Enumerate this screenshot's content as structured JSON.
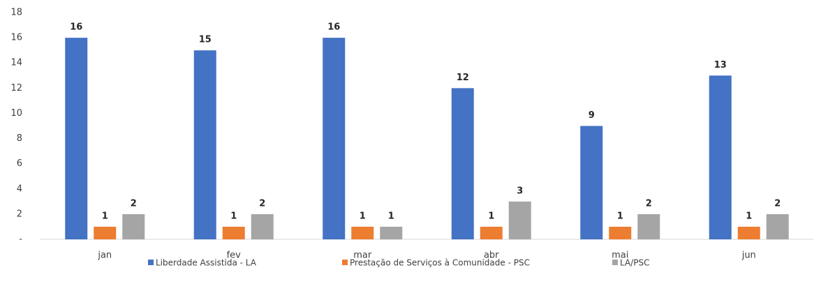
{
  "chart_data": {
    "type": "bar",
    "categories": [
      "jan",
      "fev",
      "mar",
      "abr",
      "mai",
      "jun"
    ],
    "series": [
      {
        "name": "Liberdade Assistida - LA",
        "color": "#4472c4",
        "values": [
          16,
          15,
          16,
          12,
          9,
          13
        ]
      },
      {
        "name": "Prestação de Serviços à Comunidade - PSC",
        "color": "#ed7d31",
        "values": [
          1,
          1,
          1,
          1,
          1,
          1
        ]
      },
      {
        "name": "LA/PSC",
        "color": "#a5a5a5",
        "values": [
          2,
          2,
          1,
          3,
          2,
          2
        ]
      }
    ],
    "ylim": [
      0,
      18
    ],
    "yticks": [
      {
        "value": 0,
        "label": "-"
      },
      2,
      4,
      6,
      8,
      10,
      12,
      14,
      16,
      18
    ],
    "grid": false,
    "legend": "bottom"
  }
}
